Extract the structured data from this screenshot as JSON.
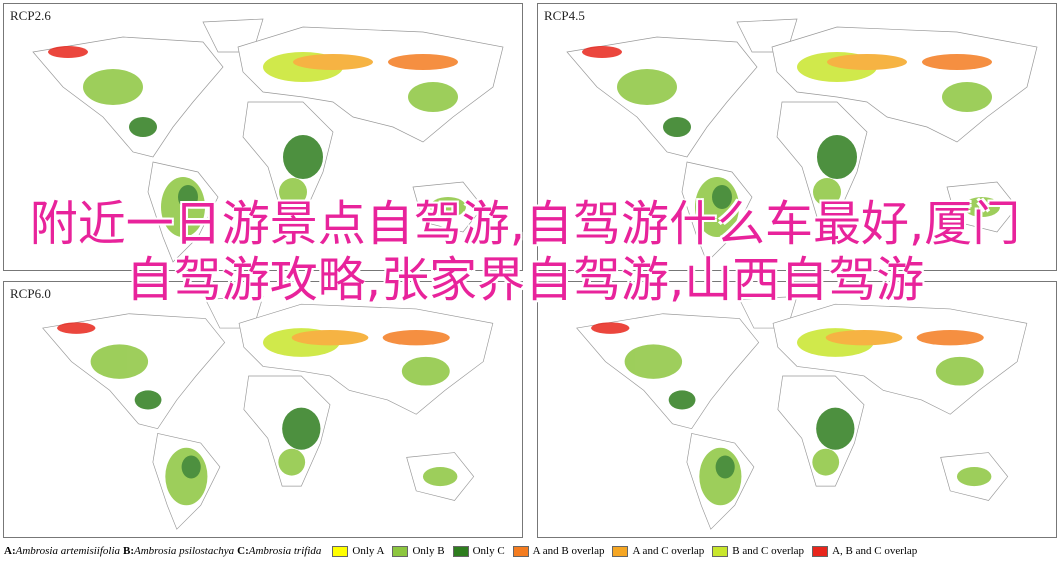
{
  "title": "附近一日游景点自驾游,自驾游什么车最好,厦门自驾游攻略,张家界自驾游,山西自驾游",
  "panels": [
    {
      "label": "RCP2.6"
    },
    {
      "label": "RCP4.5"
    },
    {
      "label": "RCP6.0"
    },
    {
      "label": ""
    }
  ],
  "legend": {
    "species": [
      {
        "letter": "A:",
        "name": "Ambrosia artemisiifolia"
      },
      {
        "letter": "B:",
        "name": "Ambrosia psilostachya"
      },
      {
        "letter": "C:",
        "name": "Ambrosia trifida"
      }
    ],
    "items": [
      {
        "label": "Only A",
        "color": "#ffff00"
      },
      {
        "label": "Only B",
        "color": "#8dc63f"
      },
      {
        "label": "Only C",
        "color": "#2e7d1e"
      },
      {
        "label": "A and B overlap",
        "color": "#f47c20"
      },
      {
        "label": "A and C overlap",
        "color": "#f5a623"
      },
      {
        "label": "B and C overlap",
        "color": "#c8e62c"
      },
      {
        "label": "A, B and C overlap",
        "color": "#e8261c"
      }
    ]
  }
}
